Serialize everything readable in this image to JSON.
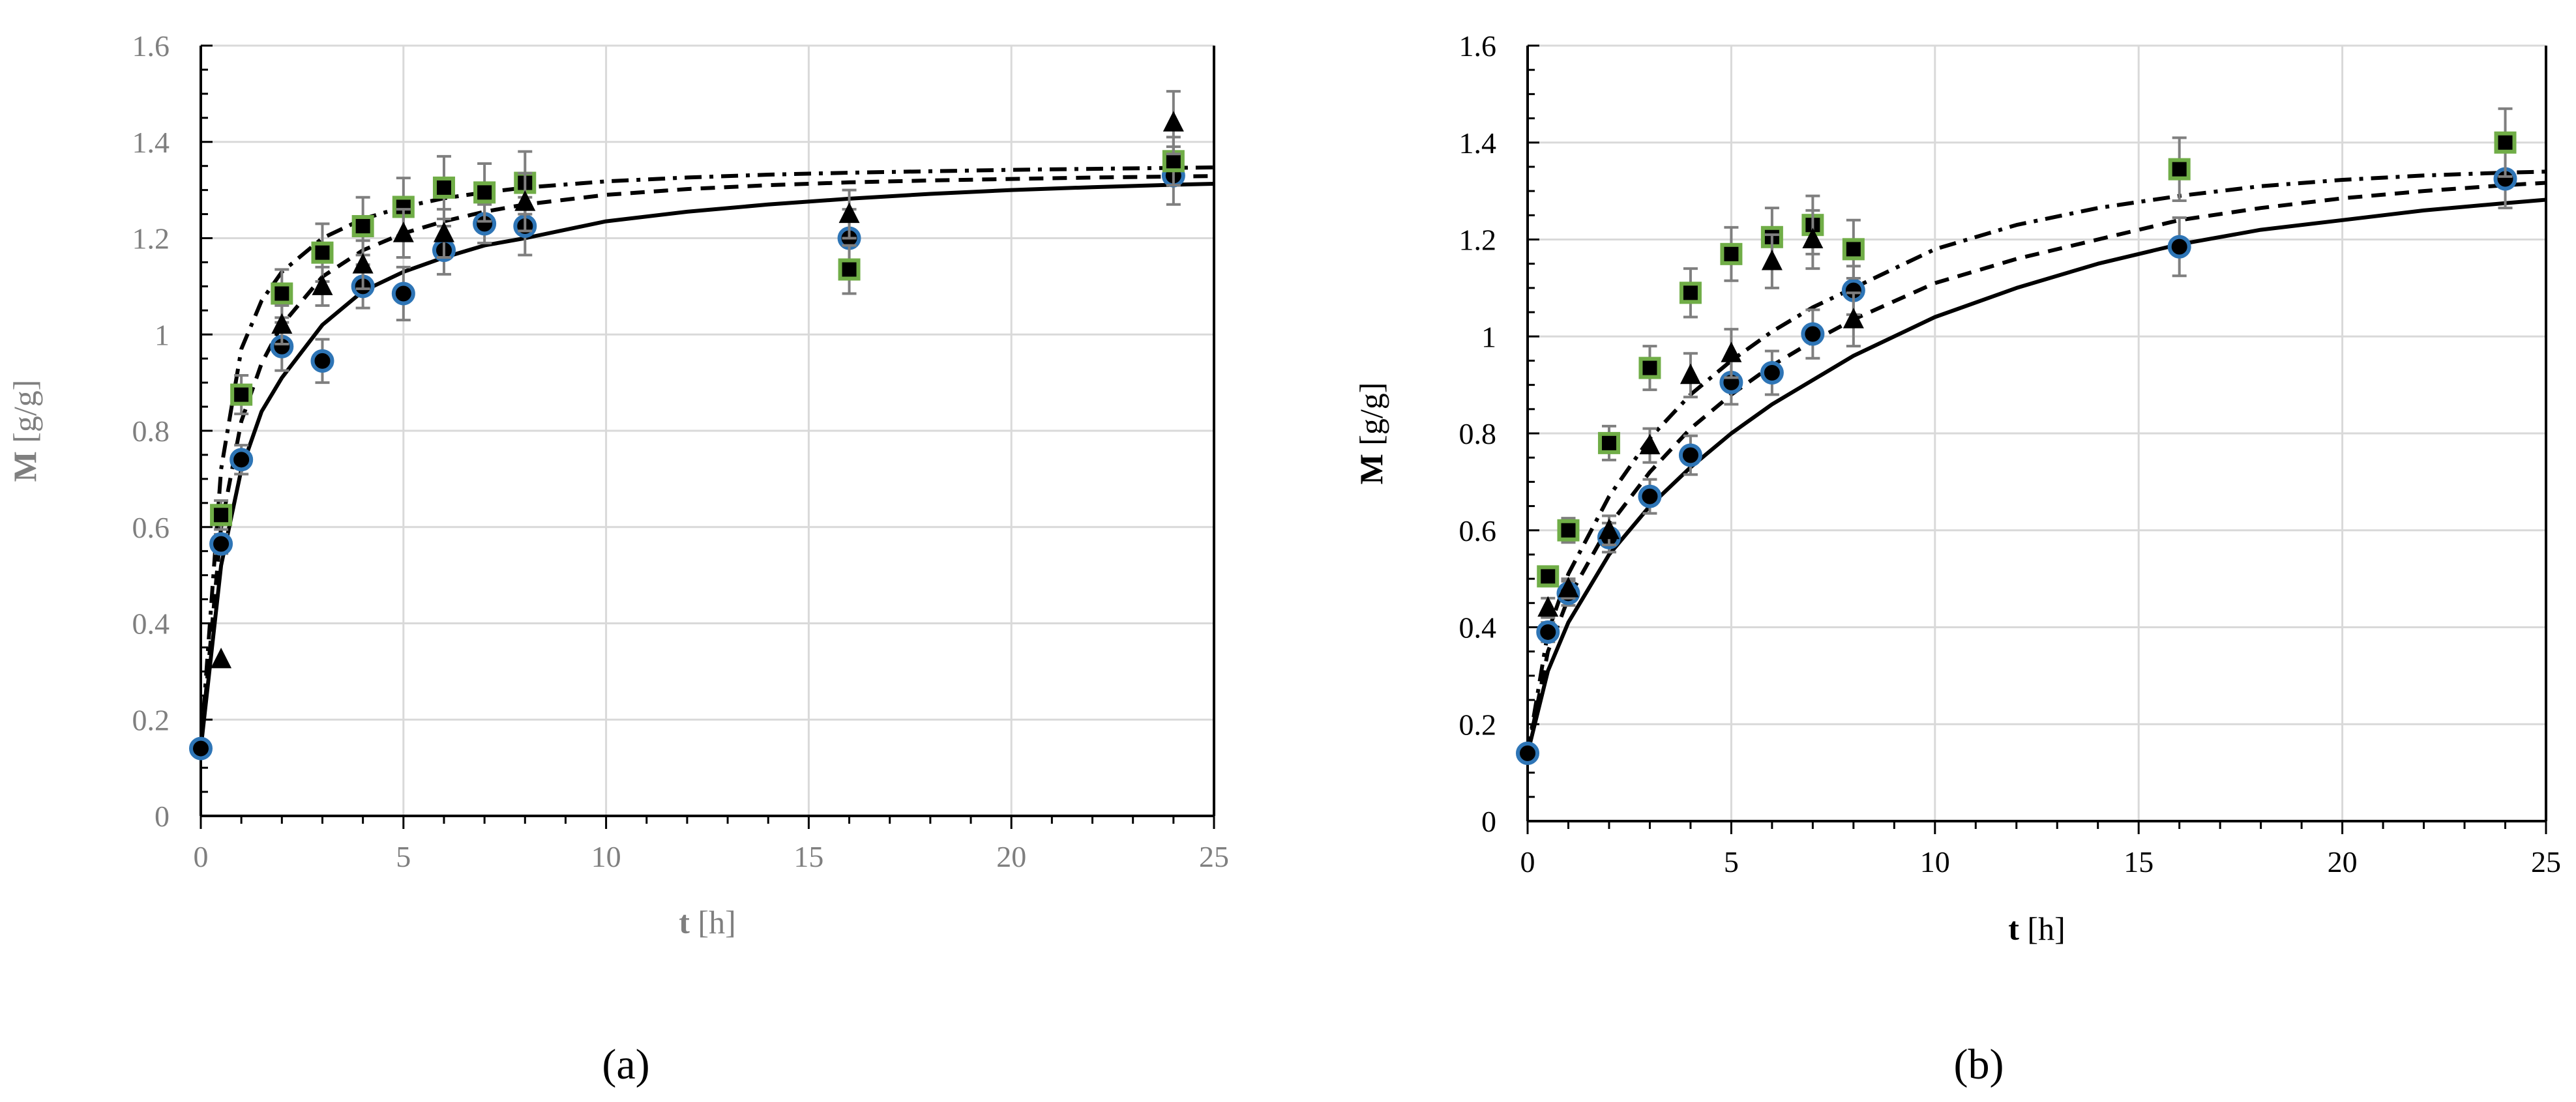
{
  "figure": {
    "panel_labels": [
      "(a)",
      "(b)"
    ]
  },
  "colors": {
    "grid": "#d9d9d9",
    "axis": "#000000",
    "errorbar": "#7f7f7f",
    "circle_fill": "#000000",
    "circle_edge": "#2e75b6",
    "square_fill": "#000000",
    "square_edge": "#70ad47",
    "triangle_fill": "#000000",
    "tick_text_a": "#7f7f7f",
    "tick_text_b": "#000000"
  },
  "chart_data": [
    {
      "type": "scatter",
      "panel": "(a)",
      "xlabel_bold": "t",
      "xlabel_rest": " [h]",
      "ylabel_bold": "M",
      "ylabel_rest": " [g/g]",
      "xlim": [
        0,
        25
      ],
      "ylim": [
        0,
        1.6
      ],
      "xticks": [
        "0",
        "5",
        "10",
        "15",
        "20",
        "25"
      ],
      "yticks": [
        "0",
        "0.2",
        "0.4",
        "0.6",
        "0.8",
        "1",
        "1.2",
        "1.4",
        "1.6"
      ],
      "grid": true,
      "series": [
        {
          "marker": "circle",
          "x": [
            0,
            0.5,
            1,
            2,
            3,
            4,
            5,
            6,
            7,
            8,
            16,
            24
          ],
          "y": [
            0.14,
            0.565,
            0.74,
            0.975,
            0.945,
            1.1,
            1.085,
            1.175,
            1.23,
            1.225,
            1.2,
            1.33
          ],
          "err": [
            0,
            0.02,
            0.03,
            0.05,
            0.045,
            0.045,
            0.055,
            0.05,
            0.04,
            0.06,
            0.06,
            0.06
          ]
        },
        {
          "marker": "square",
          "x": [
            0.5,
            1,
            2,
            3,
            4,
            5,
            6,
            7,
            8,
            16,
            24
          ],
          "y": [
            0.625,
            0.875,
            1.085,
            1.17,
            1.225,
            1.265,
            1.305,
            1.295,
            1.315,
            1.135,
            1.36
          ],
          "err": [
            0.03,
            0.04,
            0.05,
            0.06,
            0.06,
            0.06,
            0.065,
            0.06,
            0.065,
            0.05,
            0.05
          ]
        },
        {
          "marker": "triangle",
          "x": [
            0.5,
            2,
            3,
            4,
            5,
            6,
            8,
            16,
            24
          ],
          "y": [
            0.325,
            1.02,
            1.1,
            1.145,
            1.21,
            1.21,
            1.275,
            1.25,
            1.44
          ],
          "err": [
            0,
            0.04,
            0.04,
            0.05,
            0.05,
            0.05,
            0.06,
            0.05,
            0.065
          ]
        }
      ],
      "fits": [
        {
          "style": "solid",
          "x": [
            0,
            0.5,
            1,
            1.5,
            2,
            3,
            4,
            5,
            6,
            7,
            8,
            10,
            12,
            14,
            16,
            18,
            20,
            22,
            24,
            25
          ],
          "y": [
            0.14,
            0.52,
            0.72,
            0.84,
            0.91,
            1.02,
            1.09,
            1.13,
            1.16,
            1.185,
            1.2,
            1.235,
            1.255,
            1.27,
            1.282,
            1.292,
            1.3,
            1.306,
            1.311,
            1.313
          ]
        },
        {
          "style": "dashed",
          "x": [
            0,
            0.5,
            1,
            1.5,
            2,
            3,
            4,
            5,
            6,
            7,
            8,
            10,
            12,
            14,
            16,
            18,
            20,
            22,
            24,
            25
          ],
          "y": [
            0.14,
            0.6,
            0.82,
            0.94,
            1.02,
            1.12,
            1.175,
            1.21,
            1.235,
            1.255,
            1.27,
            1.29,
            1.302,
            1.31,
            1.316,
            1.32,
            1.323,
            1.326,
            1.328,
            1.329
          ]
        },
        {
          "style": "dashdot",
          "x": [
            0,
            0.5,
            1,
            1.5,
            2,
            3,
            4,
            5,
            6,
            7,
            8,
            10,
            12,
            14,
            16,
            18,
            20,
            22,
            24,
            25
          ],
          "y": [
            0.14,
            0.72,
            0.97,
            1.07,
            1.13,
            1.2,
            1.24,
            1.265,
            1.283,
            1.295,
            1.305,
            1.318,
            1.326,
            1.332,
            1.336,
            1.339,
            1.342,
            1.344,
            1.346,
            1.347
          ]
        }
      ]
    },
    {
      "type": "scatter",
      "panel": "(b)",
      "xlabel_bold": "t",
      "xlabel_rest": " [h]",
      "ylabel_bold": "M",
      "ylabel_rest": " [g/g]",
      "xlim": [
        0,
        25
      ],
      "ylim": [
        0,
        1.6
      ],
      "xticks": [
        "0",
        "5",
        "10",
        "15",
        "20",
        "25"
      ],
      "yticks": [
        "0",
        "0.2",
        "0.4",
        "0.6",
        "0.8",
        "1",
        "1.2",
        "1.4",
        "1.6"
      ],
      "grid": true,
      "series": [
        {
          "marker": "circle",
          "x": [
            0,
            0.5,
            1,
            2,
            3,
            4,
            5,
            6,
            7,
            8,
            16,
            24
          ],
          "y": [
            0.14,
            0.39,
            0.47,
            0.585,
            0.67,
            0.755,
            0.905,
            0.925,
            1.005,
            1.095,
            1.185,
            1.325
          ],
          "err": [
            0,
            0.02,
            0.025,
            0.03,
            0.035,
            0.04,
            0.045,
            0.045,
            0.05,
            0.05,
            0.06,
            0.06
          ]
        },
        {
          "marker": "square",
          "x": [
            0.5,
            1,
            2,
            3,
            4,
            5,
            6,
            7,
            8,
            16,
            24
          ],
          "y": [
            0.505,
            0.6,
            0.78,
            0.935,
            1.09,
            1.17,
            1.205,
            1.23,
            1.18,
            1.345,
            1.4
          ],
          "err": [
            0.02,
            0.025,
            0.035,
            0.045,
            0.05,
            0.055,
            0.06,
            0.06,
            0.06,
            0.065,
            0.07
          ]
        },
        {
          "marker": "triangle",
          "x": [
            0.5,
            1,
            2,
            3,
            4,
            5,
            6,
            7,
            8
          ],
          "y": [
            0.44,
            0.48,
            0.6,
            0.775,
            0.92,
            0.965,
            1.155,
            1.2,
            1.035
          ],
          "err": [
            0.02,
            0.02,
            0.03,
            0.035,
            0.045,
            0.05,
            0.055,
            0.06,
            0.055
          ]
        }
      ],
      "fits": [
        {
          "style": "solid",
          "x": [
            0,
            0.5,
            1,
            2,
            3,
            4,
            5,
            6,
            7,
            8,
            10,
            12,
            14,
            16,
            18,
            20,
            22,
            24,
            25
          ],
          "y": [
            0.14,
            0.31,
            0.41,
            0.55,
            0.65,
            0.73,
            0.8,
            0.86,
            0.91,
            0.96,
            1.04,
            1.1,
            1.15,
            1.19,
            1.22,
            1.24,
            1.26,
            1.275,
            1.282
          ]
        },
        {
          "style": "dashed",
          "x": [
            0,
            0.5,
            1,
            2,
            3,
            4,
            5,
            6,
            7,
            8,
            10,
            12,
            14,
            16,
            18,
            20,
            22,
            24,
            25
          ],
          "y": [
            0.14,
            0.35,
            0.46,
            0.61,
            0.72,
            0.81,
            0.88,
            0.94,
            0.99,
            1.035,
            1.11,
            1.16,
            1.2,
            1.24,
            1.265,
            1.285,
            1.3,
            1.312,
            1.317
          ]
        },
        {
          "style": "dashdot",
          "x": [
            0,
            0.5,
            1,
            2,
            3,
            4,
            5,
            6,
            7,
            8,
            10,
            12,
            14,
            16,
            18,
            20,
            22,
            24,
            25
          ],
          "y": [
            0.14,
            0.39,
            0.51,
            0.67,
            0.79,
            0.88,
            0.95,
            1.01,
            1.06,
            1.1,
            1.18,
            1.23,
            1.265,
            1.29,
            1.31,
            1.323,
            1.332,
            1.338,
            1.34
          ]
        }
      ]
    }
  ]
}
